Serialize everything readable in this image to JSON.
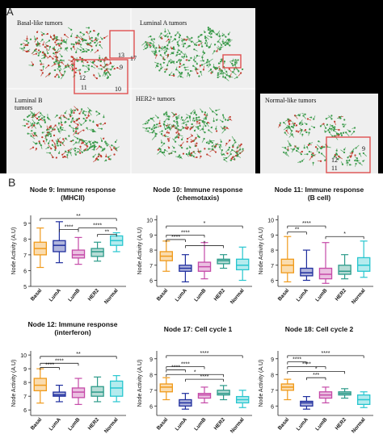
{
  "panelA": {
    "letter": "A",
    "tumors": [
      {
        "label": "Basal-like tumors"
      },
      {
        "label": "Luminal A tumors"
      },
      {
        "label": "Luminal B\ntumors"
      },
      {
        "label": "HER2+ tumors"
      },
      {
        "label": "Normal-like tumors"
      }
    ],
    "node_labels": {
      "basal": [
        "13",
        "17",
        "9",
        "12",
        "11",
        "10"
      ],
      "normal": [
        "9",
        "12",
        "11"
      ]
    },
    "colors": {
      "red": "#c0392b",
      "green": "#3a9a4a",
      "box": "#e05050"
    }
  },
  "panelB": {
    "letter": "B",
    "ylabel": "Node Activity (A.U)",
    "categories": [
      "Basal",
      "LumA",
      "LumB",
      "HER2",
      "Normal"
    ],
    "colors": [
      "#f09a1a",
      "#1f2e9e",
      "#c54aa8",
      "#2d9b8a",
      "#27c6cf"
    ]
  },
  "chart_data": [
    {
      "type": "box",
      "title": "Node 9: Immune response\n(MHCII)",
      "ylim": [
        5,
        9.5
      ],
      "yticks": [
        5,
        6,
        7,
        8,
        9
      ],
      "series": [
        {
          "name": "Basal",
          "min": 6.2,
          "q1": 7.0,
          "median": 7.4,
          "q3": 7.8,
          "max": 8.7
        },
        {
          "name": "LumA",
          "min": 6.5,
          "q1": 7.2,
          "median": 7.6,
          "q3": 7.9,
          "max": 9.1
        },
        {
          "name": "LumB",
          "min": 6.4,
          "q1": 6.8,
          "median": 7.0,
          "q3": 7.3,
          "max": 8.1
        },
        {
          "name": "HER2",
          "min": 6.6,
          "q1": 6.9,
          "median": 7.2,
          "q3": 7.4,
          "max": 7.8
        },
        {
          "name": "Normal",
          "min": 7.2,
          "q1": 7.6,
          "median": 7.9,
          "q3": 8.2,
          "max": 8.4
        }
      ],
      "significance": [
        {
          "from": 0,
          "to": 4,
          "label": "**",
          "y": 9.3
        },
        {
          "from": 1,
          "to": 2,
          "label": "****",
          "y": 8.6
        },
        {
          "from": 2,
          "to": 4,
          "label": "****",
          "y": 8.7
        },
        {
          "from": 3,
          "to": 4,
          "label": "**",
          "y": 8.3
        }
      ]
    },
    {
      "type": "box",
      "title": "Node 10: Immune response\n(chemotaxis)",
      "ylim": [
        5.6,
        10.3
      ],
      "yticks": [
        6,
        7,
        8,
        9,
        10
      ],
      "series": [
        {
          "name": "Basal",
          "min": 6.6,
          "q1": 7.3,
          "median": 7.6,
          "q3": 7.9,
          "max": 8.6
        },
        {
          "name": "LumA",
          "min": 5.9,
          "q1": 6.6,
          "median": 6.8,
          "q3": 7.0,
          "max": 7.7
        },
        {
          "name": "LumB",
          "min": 6.1,
          "q1": 6.6,
          "median": 6.9,
          "q3": 7.2,
          "max": 8.5
        },
        {
          "name": "HER2",
          "min": 6.8,
          "q1": 7.1,
          "median": 7.3,
          "q3": 7.4,
          "max": 7.7
        },
        {
          "name": "Normal",
          "min": 6.0,
          "q1": 6.7,
          "median": 7.0,
          "q3": 7.4,
          "max": 8.2
        }
      ],
      "significance": [
        {
          "from": 0,
          "to": 4,
          "label": "*",
          "y": 9.6
        },
        {
          "from": 0,
          "to": 1,
          "label": "****",
          "y": 8.7
        },
        {
          "from": 0,
          "to": 2,
          "label": "****",
          "y": 9.0
        },
        {
          "from": 1,
          "to": 3,
          "label": "*",
          "y": 8.3
        }
      ]
    },
    {
      "type": "box",
      "title": "Node 11: Immune response\n(B cell)",
      "ylim": [
        5.6,
        10.3
      ],
      "yticks": [
        6,
        7,
        8,
        9,
        10
      ],
      "series": [
        {
          "name": "Basal",
          "min": 5.9,
          "q1": 6.5,
          "median": 7.0,
          "q3": 7.4,
          "max": 8.9
        },
        {
          "name": "LumA",
          "min": 6.0,
          "q1": 6.3,
          "median": 6.5,
          "q3": 6.8,
          "max": 8.0
        },
        {
          "name": "LumB",
          "min": 5.8,
          "q1": 6.1,
          "median": 6.4,
          "q3": 6.8,
          "max": 8.5
        },
        {
          "name": "HER2",
          "min": 6.1,
          "q1": 6.4,
          "median": 6.6,
          "q3": 7.0,
          "max": 7.7
        },
        {
          "name": "Normal",
          "min": 6.2,
          "q1": 6.6,
          "median": 7.0,
          "q3": 7.5,
          "max": 8.6
        }
      ],
      "significance": [
        {
          "from": 0,
          "to": 2,
          "label": "****",
          "y": 9.6
        },
        {
          "from": 0,
          "to": 1,
          "label": "**",
          "y": 9.2
        },
        {
          "from": 2,
          "to": 4,
          "label": "*",
          "y": 8.9
        }
      ]
    },
    {
      "type": "box",
      "title": "Node 12: Immune response\n(interferon)",
      "ylim": [
        5.6,
        10.3
      ],
      "yticks": [
        6,
        7,
        8,
        9,
        10
      ],
      "series": [
        {
          "name": "Basal",
          "min": 6.5,
          "q1": 7.4,
          "median": 7.8,
          "q3": 8.3,
          "max": 9.0
        },
        {
          "name": "LumA",
          "min": 6.6,
          "q1": 7.0,
          "median": 7.1,
          "q3": 7.3,
          "max": 7.8
        },
        {
          "name": "LumB",
          "min": 6.4,
          "q1": 6.9,
          "median": 7.3,
          "q3": 7.6,
          "max": 8.3
        },
        {
          "name": "HER2",
          "min": 6.6,
          "q1": 7.0,
          "median": 7.3,
          "q3": 7.7,
          "max": 8.4
        },
        {
          "name": "Normal",
          "min": 6.6,
          "q1": 7.0,
          "median": 7.6,
          "q3": 8.1,
          "max": 8.5
        }
      ],
      "significance": [
        {
          "from": 0,
          "to": 4,
          "label": "**",
          "y": 9.9
        },
        {
          "from": 0,
          "to": 2,
          "label": "****",
          "y": 9.4
        },
        {
          "from": 0,
          "to": 1,
          "label": "****",
          "y": 9.1
        }
      ]
    },
    {
      "type": "box",
      "title": "Node 17: Cell cycle 1",
      "ylim": [
        5.4,
        9.5
      ],
      "yticks": [
        6,
        7,
        8,
        9
      ],
      "series": [
        {
          "name": "Basal",
          "min": 6.4,
          "q1": 6.9,
          "median": 7.2,
          "q3": 7.4,
          "max": 7.8
        },
        {
          "name": "LumA",
          "min": 5.8,
          "q1": 6.0,
          "median": 6.2,
          "q3": 6.4,
          "max": 6.8
        },
        {
          "name": "LumB",
          "min": 6.2,
          "q1": 6.5,
          "median": 6.7,
          "q3": 6.8,
          "max": 7.2
        },
        {
          "name": "HER2",
          "min": 6.4,
          "q1": 6.7,
          "median": 6.8,
          "q3": 7.0,
          "max": 7.3
        },
        {
          "name": "Normal",
          "min": 5.9,
          "q1": 6.2,
          "median": 6.4,
          "q3": 6.6,
          "max": 7.0
        }
      ],
      "significance": [
        {
          "from": 0,
          "to": 4,
          "label": "****",
          "y": 9.2
        },
        {
          "from": 0,
          "to": 1,
          "label": "****",
          "y": 8.3
        },
        {
          "from": 0,
          "to": 2,
          "label": "****",
          "y": 8.5
        },
        {
          "from": 0,
          "to": 3,
          "label": "*",
          "y": 8.0
        },
        {
          "from": 1,
          "to": 3,
          "label": "****",
          "y": 7.7
        }
      ]
    },
    {
      "type": "box",
      "title": "Node 18: Cell cycle 2",
      "ylim": [
        5.4,
        9.5
      ],
      "yticks": [
        6,
        7,
        8,
        9
      ],
      "series": [
        {
          "name": "Basal",
          "min": 6.4,
          "q1": 7.0,
          "median": 7.2,
          "q3": 7.4,
          "max": 7.7
        },
        {
          "name": "LumA",
          "min": 5.8,
          "q1": 6.0,
          "median": 6.2,
          "q3": 6.3,
          "max": 6.6
        },
        {
          "name": "LumB",
          "min": 6.2,
          "q1": 6.5,
          "median": 6.7,
          "q3": 6.9,
          "max": 7.2
        },
        {
          "name": "HER2",
          "min": 6.5,
          "q1": 6.7,
          "median": 6.8,
          "q3": 6.9,
          "max": 7.1
        },
        {
          "name": "Normal",
          "min": 5.9,
          "q1": 6.1,
          "median": 6.4,
          "q3": 6.7,
          "max": 6.9
        }
      ],
      "significance": [
        {
          "from": 0,
          "to": 4,
          "label": "****",
          "y": 9.2
        },
        {
          "from": 0,
          "to": 1,
          "label": "****",
          "y": 8.8
        },
        {
          "from": 0,
          "to": 2,
          "label": "****",
          "y": 8.5
        },
        {
          "from": 0,
          "to": 3,
          "label": "*",
          "y": 8.2
        },
        {
          "from": 1,
          "to": 2,
          "label": "***",
          "y": 7.8
        }
      ]
    }
  ]
}
